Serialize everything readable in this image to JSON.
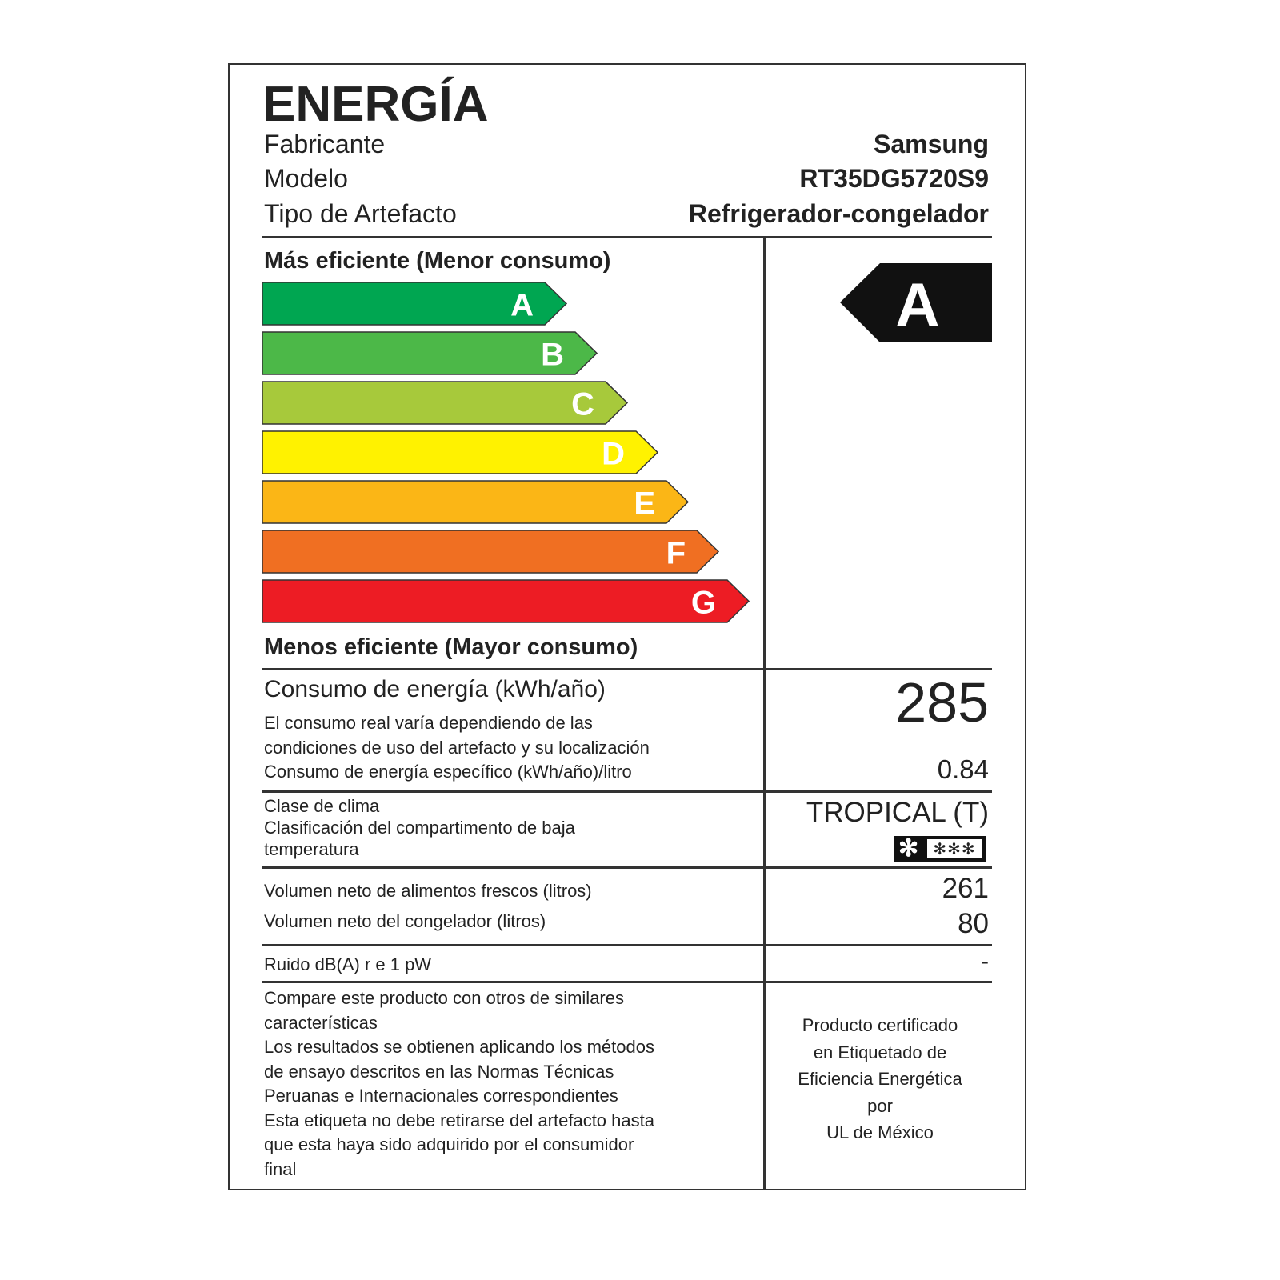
{
  "title": "ENERGÍA",
  "info": [
    {
      "label": "Fabricante",
      "value": "Samsung"
    },
    {
      "label": "Modelo",
      "value": "RT35DG5720S9"
    },
    {
      "label": "Tipo de Artefacto",
      "value": "Refrigerador-congelador"
    }
  ],
  "scale": {
    "top_label": "Más eficiente (Menor consumo)",
    "bottom_label": "Menos eficiente (Mayor consumo)",
    "classes": [
      {
        "letter": "A",
        "color": "#00a651"
      },
      {
        "letter": "B",
        "color": "#4cb848"
      },
      {
        "letter": "C",
        "color": "#a7c93b"
      },
      {
        "letter": "D",
        "color": "#fff200"
      },
      {
        "letter": "E",
        "color": "#fbb616"
      },
      {
        "letter": "F",
        "color": "#f06f22"
      },
      {
        "letter": "G",
        "color": "#ed1c24"
      }
    ],
    "rating": "A"
  },
  "consumption": {
    "label": "Consumo de energía (kWh/año)",
    "value": "285",
    "note_lines": [
      "El consumo real varía dependiendo de las",
      "condiciones de uso del artefacto y su localización"
    ],
    "specific_label": "Consumo de energía específico (kWh/año)/litro",
    "specific_value": "0.84"
  },
  "climate": {
    "label": "Clase de clima",
    "value": "TROPICAL (T)",
    "freezer_label_lines": [
      "Clasificación del compartimento de baja",
      "temperatura"
    ],
    "freezer_rating": "4 stars (*/***)"
  },
  "volumes": [
    {
      "label": "Volumen neto de alimentos frescos (litros)",
      "value": "261"
    },
    {
      "label": "Volumen neto del congelador (litros)",
      "value": "80"
    }
  ],
  "noise": {
    "label": "Ruido dB(A) r e 1 pW",
    "value": "-"
  },
  "footer_lines": [
    "Compare este producto con otros de similares",
    "características",
    "Los resultados se obtienen aplicando los métodos",
    "de ensayo descritos en las Normas Técnicas",
    "Peruanas e Internacionales correspondientes",
    "Esta etiqueta no debe retirarse del artefacto hasta",
    "que esta haya sido adquirido por el consumidor",
    "final"
  ],
  "certification_lines": [
    "Producto certificado",
    "en Etiquetado de",
    "Eficiencia Energética",
    "por",
    "UL de México"
  ]
}
